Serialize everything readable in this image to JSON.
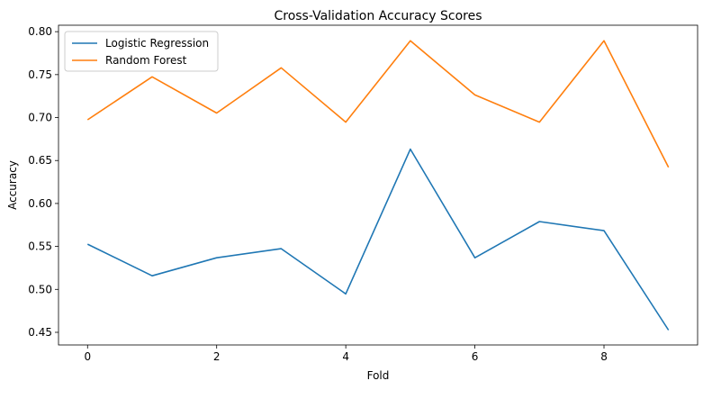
{
  "chart_data": {
    "type": "line",
    "title": "Cross-Validation Accuracy Scores",
    "xlabel": "Fold",
    "ylabel": "Accuracy",
    "x": [
      0,
      1,
      2,
      3,
      4,
      5,
      6,
      7,
      8,
      9
    ],
    "xlim": [
      -0.45,
      9.45
    ],
    "ylim": [
      0.4353,
      0.8075
    ],
    "xticks": [
      0,
      2,
      4,
      6,
      8
    ],
    "xtick_labels": [
      "0",
      "2",
      "4",
      "6",
      "8"
    ],
    "yticks": [
      0.45,
      0.5,
      0.55,
      0.6,
      0.65,
      0.7,
      0.75,
      0.8
    ],
    "ytick_labels": [
      "0.45",
      "0.50",
      "0.55",
      "0.60",
      "0.65",
      "0.70",
      "0.75",
      "0.80"
    ],
    "grid": false,
    "legend_position": "top-left",
    "series": [
      {
        "name": "Logistic Regression",
        "color": "#1f77b4",
        "values": [
          0.5526,
          0.5158,
          0.5368,
          0.5474,
          0.4947,
          0.6632,
          0.5368,
          0.5789,
          0.5684,
          0.4526
        ]
      },
      {
        "name": "Random Forest",
        "color": "#ff7f0e",
        "values": [
          0.6974,
          0.7474,
          0.7053,
          0.7579,
          0.6947,
          0.7895,
          0.7263,
          0.6947,
          0.7895,
          0.6421
        ]
      }
    ]
  }
}
